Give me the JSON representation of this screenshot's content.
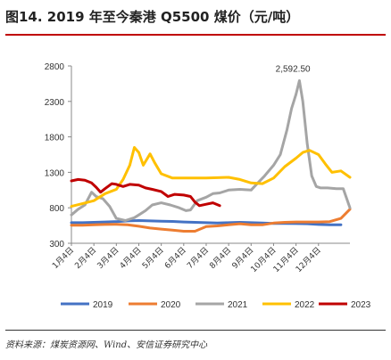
{
  "header": {
    "title": "图14. 2019 年至今秦港 Q5500 煤价（元/吨）"
  },
  "footer": {
    "source": "资料来源：煤炭资源网、Wind、安信证券研究中心"
  },
  "chart_data": {
    "type": "line",
    "title": "图14. 2019 年至今秦港 Q5500 煤价（元/吨）",
    "xlabel": "",
    "ylabel": "",
    "ylim": [
      300,
      2800
    ],
    "yticks": [
      300,
      800,
      1300,
      1800,
      2300,
      2800
    ],
    "grid": false,
    "legend_position": "bottom",
    "categories": [
      "1月4日",
      "2月4日",
      "3月4日",
      "4月4日",
      "5月4日",
      "6月4日",
      "7月4日",
      "8月4日",
      "9月4日",
      "10月4日",
      "11月4日",
      "12月4日"
    ],
    "annotation": {
      "text": "2,592.50",
      "x": 10.1,
      "y": 2592.5
    },
    "series": [
      {
        "name": "2019",
        "color": "#4472c4",
        "x": [
          0,
          0.5,
          1,
          1.5,
          2,
          2.5,
          3,
          3.5,
          4,
          4.5,
          5,
          5.5,
          6,
          6.5,
          7,
          7.5,
          8,
          8.5,
          9,
          9.5,
          10,
          10.5,
          11,
          11.5,
          12
        ],
        "y": [
          590,
          590,
          595,
          600,
          605,
          615,
          620,
          615,
          610,
          608,
          600,
          595,
          590,
          585,
          590,
          595,
          590,
          585,
          580,
          580,
          578,
          575,
          565,
          560,
          560
        ]
      },
      {
        "name": "2020",
        "color": "#ed7d31",
        "x": [
          0,
          0.5,
          1,
          1.5,
          2,
          2.5,
          3,
          3.5,
          4,
          4.5,
          5,
          5.5,
          6,
          6.5,
          7,
          7.5,
          8,
          8.5,
          9,
          9.5,
          10,
          10.5,
          11,
          11.5,
          12,
          12.4
        ],
        "y": [
          555,
          555,
          560,
          565,
          568,
          560,
          540,
          515,
          500,
          485,
          470,
          470,
          535,
          545,
          560,
          575,
          560,
          560,
          585,
          595,
          600,
          600,
          600,
          605,
          650,
          780
        ]
      },
      {
        "name": "2021",
        "color": "#a5a5a5",
        "x": [
          0,
          0.3,
          0.6,
          0.9,
          1.1,
          1.4,
          1.7,
          2,
          2.4,
          2.8,
          3,
          3.3,
          3.6,
          4,
          4.4,
          4.8,
          5.1,
          5.3,
          5.6,
          6,
          6.3,
          6.6,
          7,
          7.5,
          8,
          8.3,
          8.6,
          9,
          9.3,
          9.6,
          9.8,
          10,
          10.15,
          10.3,
          10.5,
          10.7,
          10.9,
          11.1,
          11.4,
          11.8,
          12.1,
          12.4
        ],
        "y": [
          700,
          780,
          840,
          1020,
          960,
          930,
          820,
          650,
          620,
          660,
          700,
          760,
          840,
          870,
          840,
          800,
          760,
          770,
          900,
          950,
          1000,
          1010,
          1050,
          1060,
          1050,
          1150,
          1250,
          1400,
          1550,
          1900,
          2200,
          2400,
          2592.5,
          2300,
          1700,
          1250,
          1100,
          1080,
          1080,
          1070,
          1070,
          800
        ]
      },
      {
        "name": "2022",
        "color": "#ffc000",
        "x": [
          0,
          0.5,
          1,
          1.5,
          2,
          2.3,
          2.6,
          2.8,
          3,
          3.2,
          3.5,
          3.7,
          4,
          4.5,
          5,
          5.5,
          6,
          6.5,
          7,
          7.5,
          8,
          8.5,
          9,
          9.5,
          10,
          10.3,
          10.6,
          11,
          11.3,
          11.6,
          12,
          12.4
        ],
        "y": [
          820,
          860,
          900,
          1000,
          1060,
          1200,
          1400,
          1650,
          1580,
          1400,
          1560,
          1440,
          1280,
          1220,
          1220,
          1220,
          1220,
          1225,
          1230,
          1200,
          1150,
          1140,
          1220,
          1380,
          1500,
          1580,
          1610,
          1550,
          1420,
          1300,
          1320,
          1230
        ]
      },
      {
        "name": "2023",
        "color": "#c00000",
        "x": [
          0,
          0.3,
          0.6,
          0.9,
          1.1,
          1.3,
          1.5,
          1.8,
          2,
          2.3,
          2.6,
          3,
          3.3,
          3.6,
          4,
          4.3,
          4.6,
          5,
          5.3,
          5.5,
          5.7,
          6,
          6.3,
          6.6
        ],
        "y": [
          1180,
          1200,
          1190,
          1150,
          1090,
          1020,
          1070,
          1140,
          1130,
          1100,
          1130,
          1120,
          1080,
          1060,
          1030,
          960,
          990,
          980,
          960,
          880,
          830,
          850,
          870,
          830
        ]
      }
    ]
  }
}
